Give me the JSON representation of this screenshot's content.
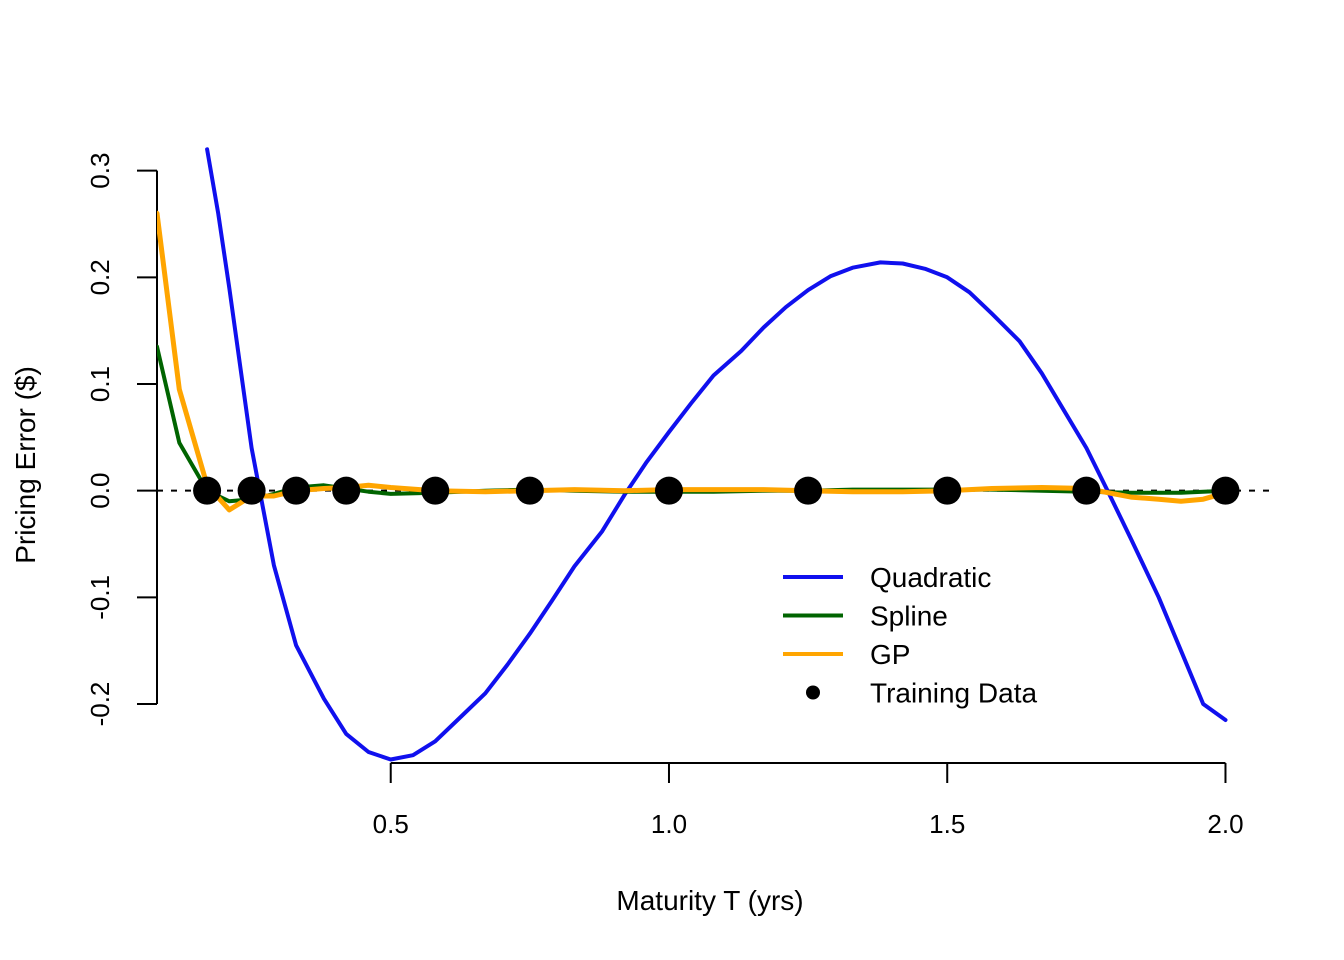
{
  "chart_data": {
    "type": "line",
    "title": "",
    "xlabel": "Maturity T (yrs)",
    "ylabel": "Pricing Error ($)",
    "xlim": [
      0.08,
      2.08
    ],
    "ylim": [
      -0.275,
      0.325
    ],
    "x_ticks": [
      {
        "value": 0.5,
        "label": "0.5"
      },
      {
        "value": 1.0,
        "label": "1.0"
      },
      {
        "value": 1.5,
        "label": "1.5"
      },
      {
        "value": 2.0,
        "label": "2.0"
      }
    ],
    "y_ticks": [
      {
        "value": -0.2,
        "label": "-0.2"
      },
      {
        "value": -0.1,
        "label": "-0.1"
      },
      {
        "value": 0.0,
        "label": "0.0"
      },
      {
        "value": 0.1,
        "label": "0.1"
      },
      {
        "value": 0.2,
        "label": "0.2"
      },
      {
        "value": 0.3,
        "label": "0.3"
      }
    ],
    "reference_line": {
      "y": 0.0,
      "style": "dashed",
      "color": "#000000"
    },
    "grid": false,
    "legend_position": "bottom-right",
    "series": [
      {
        "name": "Quadratic",
        "color": "#1010ee",
        "x": [
          0.17,
          0.19,
          0.21,
          0.25,
          0.29,
          0.33,
          0.38,
          0.42,
          0.46,
          0.5,
          0.54,
          0.58,
          0.62,
          0.67,
          0.71,
          0.75,
          0.79,
          0.83,
          0.88,
          0.92,
          0.96,
          1.0,
          1.04,
          1.08,
          1.13,
          1.17,
          1.21,
          1.25,
          1.29,
          1.33,
          1.38,
          1.42,
          1.46,
          1.5,
          1.54,
          1.58,
          1.63,
          1.67,
          1.71,
          1.75,
          1.79,
          1.83,
          1.88,
          1.92,
          1.96,
          2.0
        ],
        "y": [
          0.32,
          0.26,
          0.19,
          0.04,
          -0.07,
          -0.145,
          -0.195,
          -0.228,
          -0.245,
          -0.252,
          -0.248,
          -0.235,
          -0.215,
          -0.19,
          -0.163,
          -0.134,
          -0.103,
          -0.071,
          -0.038,
          -0.004,
          0.027,
          0.055,
          0.082,
          0.108,
          0.131,
          0.153,
          0.172,
          0.188,
          0.201,
          0.209,
          0.214,
          0.213,
          0.208,
          0.2,
          0.186,
          0.166,
          0.14,
          0.11,
          0.075,
          0.04,
          -0.002,
          -0.045,
          -0.1,
          -0.15,
          -0.2,
          -0.215
        ]
      },
      {
        "name": "Spline",
        "color": "#006400",
        "x": [
          0.08,
          0.12,
          0.17,
          0.21,
          0.25,
          0.29,
          0.33,
          0.38,
          0.42,
          0.46,
          0.5,
          0.58,
          0.67,
          0.75,
          0.83,
          0.92,
          1.0,
          1.08,
          1.17,
          1.25,
          1.33,
          1.42,
          1.5,
          1.58,
          1.67,
          1.75,
          1.83,
          1.92,
          2.0
        ],
        "y": [
          0.135,
          0.045,
          0.0,
          -0.01,
          -0.008,
          -0.003,
          0.003,
          0.005,
          0.002,
          -0.001,
          -0.003,
          -0.002,
          0.0,
          0.001,
          0.0,
          -0.001,
          -0.001,
          -0.001,
          0.0,
          0.0,
          0.001,
          0.001,
          0.001,
          0.001,
          0.0,
          -0.001,
          -0.002,
          -0.002,
          0.0
        ]
      },
      {
        "name": "GP",
        "color": "#ffa500",
        "x": [
          0.08,
          0.12,
          0.17,
          0.21,
          0.25,
          0.29,
          0.33,
          0.38,
          0.42,
          0.46,
          0.5,
          0.58,
          0.67,
          0.75,
          0.83,
          0.92,
          1.0,
          1.08,
          1.17,
          1.25,
          1.33,
          1.42,
          1.5,
          1.58,
          1.67,
          1.75,
          1.79,
          1.83,
          1.88,
          1.92,
          1.96,
          2.0
        ],
        "y": [
          0.26,
          0.095,
          0.005,
          -0.018,
          -0.005,
          -0.005,
          0.0,
          0.002,
          0.003,
          0.005,
          0.003,
          0.0,
          -0.001,
          0.0,
          0.001,
          0.0,
          0.001,
          0.001,
          0.001,
          0.0,
          -0.001,
          -0.001,
          0.0,
          0.002,
          0.003,
          0.002,
          -0.002,
          -0.006,
          -0.008,
          -0.01,
          -0.008,
          -0.002
        ]
      }
    ],
    "training_data": {
      "name": "Training Data",
      "color": "#000000",
      "x": [
        0.17,
        0.25,
        0.33,
        0.42,
        0.58,
        0.75,
        1.0,
        1.25,
        1.5,
        1.75,
        2.0
      ],
      "y": [
        0,
        0,
        0,
        0,
        0,
        0,
        0,
        0,
        0,
        0,
        0
      ]
    }
  }
}
